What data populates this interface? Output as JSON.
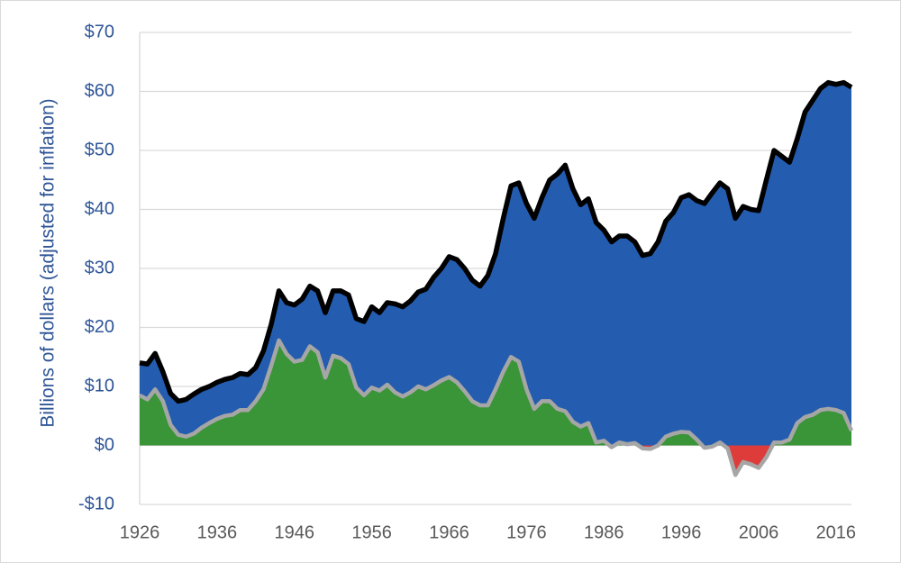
{
  "chart_data": {
    "type": "area",
    "title": "",
    "xlabel": "",
    "ylabel": "Billions of dollars (adjusted for inflation)",
    "xlim": [
      1926,
      2018
    ],
    "ylim": [
      -10,
      70
    ],
    "y_ticks": [
      -10,
      0,
      10,
      20,
      30,
      40,
      50,
      60,
      70
    ],
    "y_tick_labels": [
      "-$10",
      "$0",
      "$10",
      "$20",
      "$30",
      "$40",
      "$50",
      "$60",
      "$70"
    ],
    "x_ticks": [
      1926,
      1936,
      1946,
      1956,
      1966,
      1976,
      1986,
      1996,
      2006,
      2016
    ],
    "x_tick_labels": [
      "1926",
      "1936",
      "1946",
      "1956",
      "1966",
      "1976",
      "1986",
      "1996",
      "2006",
      "2016"
    ],
    "grid": true,
    "legend": "none",
    "colors": {
      "upper_area": "#245db0",
      "upper_line": "#000000",
      "lower_positive_area": "#3a9438",
      "lower_negative_area": "#de3b3b",
      "lower_line": "#a6a6a6",
      "axis_text": "#2e5597",
      "x_tick_text": "#595959",
      "grid": "#d9d9d9"
    },
    "x": [
      1926,
      1927,
      1928,
      1929,
      1930,
      1931,
      1932,
      1933,
      1934,
      1935,
      1936,
      1937,
      1938,
      1939,
      1940,
      1941,
      1942,
      1943,
      1944,
      1945,
      1946,
      1947,
      1948,
      1949,
      1950,
      1951,
      1952,
      1953,
      1954,
      1955,
      1956,
      1957,
      1958,
      1959,
      1960,
      1961,
      1962,
      1963,
      1964,
      1965,
      1966,
      1967,
      1968,
      1969,
      1970,
      1971,
      1972,
      1973,
      1974,
      1975,
      1976,
      1977,
      1978,
      1979,
      1980,
      1981,
      1982,
      1983,
      1984,
      1985,
      1986,
      1987,
      1988,
      1989,
      1990,
      1991,
      1992,
      1993,
      1994,
      1995,
      1996,
      1997,
      1998,
      1999,
      2000,
      2001,
      2002,
      2003,
      2004,
      2005,
      2006,
      2007,
      2008,
      2009,
      2010,
      2011,
      2012,
      2013,
      2014,
      2015,
      2016,
      2017,
      2018
    ],
    "series": [
      {
        "values": [
          14,
          13.8,
          15.6,
          12.5,
          8.8,
          7.5,
          7.8,
          8.7,
          9.5,
          10,
          10.7,
          11.2,
          11.5,
          12.2,
          12,
          13.2,
          16,
          20.5,
          26.2,
          24.2,
          23.8,
          24.8,
          27,
          26.2,
          22.5,
          26.2,
          26.2,
          25.5,
          21.5,
          21,
          23.5,
          22.5,
          24.2,
          24,
          23.5,
          24.5,
          26,
          26.5,
          28.5,
          30,
          32,
          31.5,
          30,
          28,
          27,
          28.8,
          32.5,
          38.5,
          44,
          44.5,
          41,
          38.5,
          42,
          45,
          46,
          47.5,
          43.5,
          40.8,
          41.8,
          37.8,
          36.5,
          34.5,
          35.5,
          35.5,
          34.5,
          32.2,
          32.5,
          34.5,
          38,
          39.5,
          42,
          42.5,
          41.5,
          41,
          42.8,
          44.5,
          43.5,
          38.5,
          40.5,
          40,
          39.8,
          45,
          50,
          49,
          48,
          52,
          56.5,
          58.5,
          60.5,
          61.5,
          61.2,
          61.5,
          60.7
        ]
      },
      {
        "values": [
          8.5,
          7.8,
          9.5,
          7.5,
          3.5,
          1.8,
          1.5,
          2,
          3,
          3.8,
          4.5,
          5,
          5.2,
          6,
          6,
          7.5,
          9.5,
          13.5,
          17.8,
          15.5,
          14.2,
          14.5,
          16.8,
          15.8,
          11.5,
          15.2,
          14.8,
          13.8,
          9.8,
          8.5,
          9.8,
          9.3,
          10.3,
          9,
          8.3,
          9,
          10,
          9.5,
          10.2,
          11,
          11.6,
          10.7,
          9.2,
          7.5,
          6.8,
          6.8,
          9.5,
          12.5,
          15,
          14.2,
          9.5,
          6.2,
          7.5,
          7.5,
          6.2,
          5.8,
          4,
          3.2,
          3.8,
          0.5,
          0.8,
          -0.3,
          0.5,
          0.2,
          0.4,
          -0.5,
          -0.6,
          0,
          1.5,
          2,
          2.3,
          2.2,
          1,
          -0.4,
          -0.2,
          0.5,
          -0.5,
          -5,
          -2.8,
          -3.2,
          -3.8,
          -2,
          0.5,
          0.5,
          1,
          3.8,
          4.8,
          5.2,
          6,
          6.2,
          6,
          5.5,
          2.5
        ]
      }
    ]
  }
}
